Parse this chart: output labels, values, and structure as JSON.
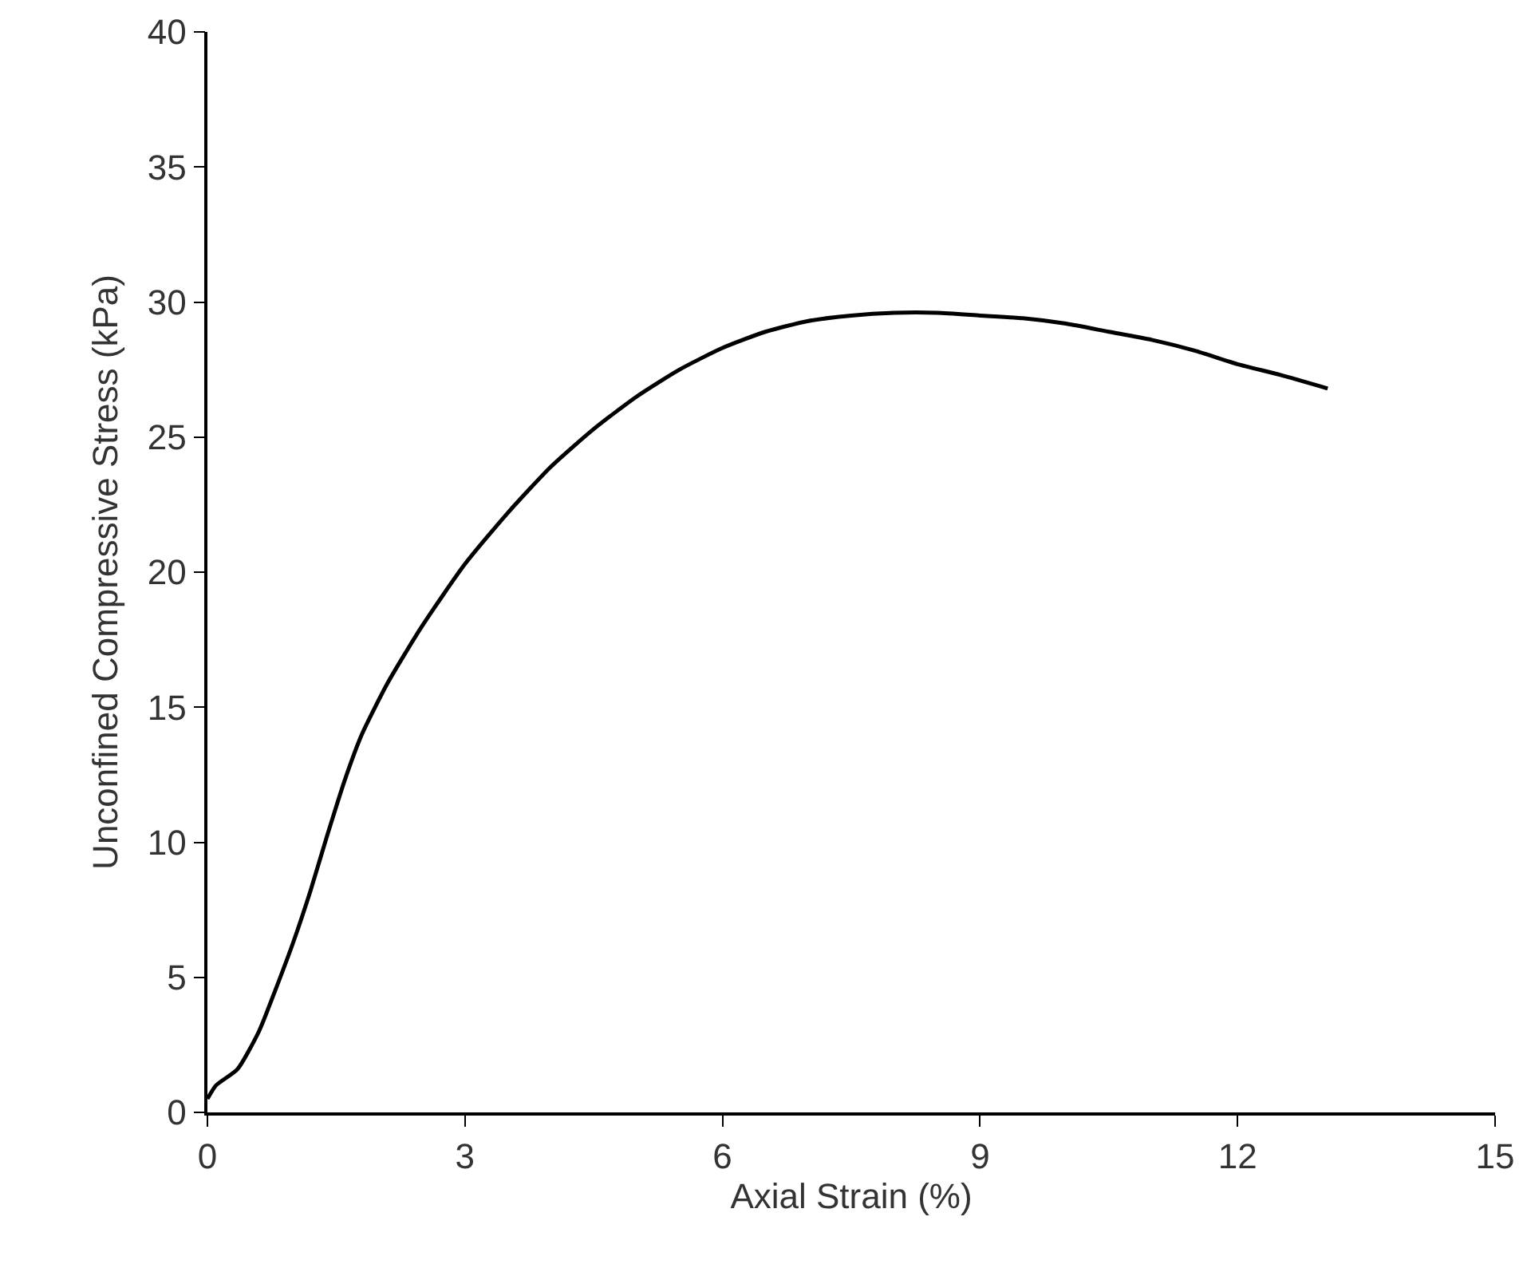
{
  "chart_data": {
    "type": "line",
    "xlabel": "Axial Strain (%)",
    "ylabel": "Unconfined Compressive Stress (kPa)",
    "x": [
      0,
      0.1,
      0.35,
      0.6,
      0.8,
      1.0,
      1.2,
      1.4,
      1.6,
      1.8,
      2.1,
      2.5,
      3,
      3.5,
      4,
      4.5,
      5,
      5.5,
      6,
      6.5,
      7,
      7.5,
      8,
      8.5,
      9,
      9.5,
      10,
      10.5,
      11,
      11.5,
      12,
      12.5,
      13.05
    ],
    "series": [
      {
        "color": "#000000",
        "values": [
          0.5,
          1.0,
          1.6,
          3.0,
          4.6,
          6.3,
          8.2,
          10.3,
          12.3,
          14.0,
          15.9,
          18.0,
          20.3,
          22.2,
          23.9,
          25.3,
          26.5,
          27.5,
          28.3,
          28.9,
          29.3,
          29.5,
          29.6,
          29.6,
          29.5,
          29.4,
          29.2,
          28.9,
          28.6,
          28.2,
          27.7,
          27.3,
          26.8
        ]
      }
    ],
    "xlim": [
      0,
      15
    ],
    "xticks": [
      0,
      3,
      6,
      9,
      12,
      15
    ],
    "ylim": [
      0,
      40
    ],
    "yticks": [
      0,
      5,
      10,
      15,
      20,
      25,
      30,
      35,
      40
    ],
    "grid": false,
    "marker": "none",
    "line_style": "solid"
  }
}
